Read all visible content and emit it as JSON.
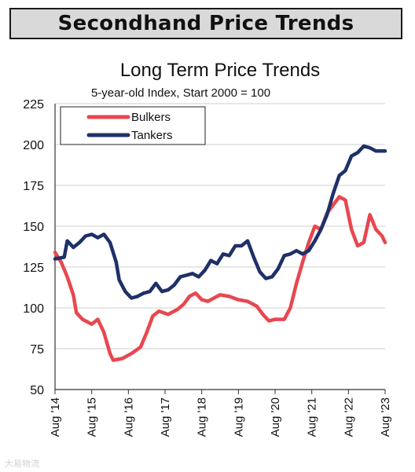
{
  "header": {
    "title": "Secondhand Price Trends"
  },
  "watermark": "大易物流",
  "chart_data": {
    "type": "line",
    "title": "Long Term Price Trends",
    "subtitle": "5-year-old Index, Start 2000 = 100",
    "xlabel": "",
    "ylabel": "",
    "ylim": [
      50,
      225
    ],
    "yticks": [
      50,
      75,
      100,
      125,
      150,
      175,
      200,
      225
    ],
    "xlim": [
      "2014-08",
      "2023-08"
    ],
    "xticks": [
      "Aug '14",
      "Aug '15",
      "Aug '16",
      "Aug '17",
      "Aug '18",
      "Aug '19",
      "Aug '20",
      "Aug '21",
      "Aug '22",
      "Aug '23"
    ],
    "grid": {
      "horizontal": true,
      "vertical": false
    },
    "legend": {
      "placement": "top-left"
    },
    "series": [
      {
        "name": "Bulkers",
        "color": "#e8474f",
        "points": [
          [
            "2014-08",
            134
          ],
          [
            "2014-10",
            128
          ],
          [
            "2014-12",
            119
          ],
          [
            "2015-02",
            108
          ],
          [
            "2015-03",
            97
          ],
          [
            "2015-05",
            93
          ],
          [
            "2015-08",
            90
          ],
          [
            "2015-10",
            93
          ],
          [
            "2015-12",
            85
          ],
          [
            "2016-02",
            72
          ],
          [
            "2016-03",
            68
          ],
          [
            "2016-06",
            69
          ],
          [
            "2016-09",
            72
          ],
          [
            "2016-12",
            76
          ],
          [
            "2017-02",
            85
          ],
          [
            "2017-04",
            95
          ],
          [
            "2017-06",
            98
          ],
          [
            "2017-09",
            96
          ],
          [
            "2017-12",
            99
          ],
          [
            "2018-02",
            102
          ],
          [
            "2018-04",
            107
          ],
          [
            "2018-06",
            109
          ],
          [
            "2018-08",
            105
          ],
          [
            "2018-10",
            104
          ],
          [
            "2018-12",
            106
          ],
          [
            "2019-02",
            108
          ],
          [
            "2019-05",
            107
          ],
          [
            "2019-08",
            105
          ],
          [
            "2019-11",
            104
          ],
          [
            "2020-02",
            101
          ],
          [
            "2020-04",
            96
          ],
          [
            "2020-06",
            92
          ],
          [
            "2020-08",
            93
          ],
          [
            "2020-11",
            93
          ],
          [
            "2021-01",
            100
          ],
          [
            "2021-03",
            115
          ],
          [
            "2021-05",
            128
          ],
          [
            "2021-07",
            140
          ],
          [
            "2021-09",
            150
          ],
          [
            "2021-11",
            148
          ],
          [
            "2022-01",
            158
          ],
          [
            "2022-03",
            163
          ],
          [
            "2022-05",
            168
          ],
          [
            "2022-07",
            166
          ],
          [
            "2022-09",
            148
          ],
          [
            "2022-11",
            138
          ],
          [
            "2023-01",
            140
          ],
          [
            "2023-03",
            157
          ],
          [
            "2023-05",
            148
          ],
          [
            "2023-07",
            144
          ],
          [
            "2023-08",
            140
          ]
        ]
      },
      {
        "name": "Tankers",
        "color": "#1f3068",
        "points": [
          [
            "2014-08",
            130
          ],
          [
            "2014-11",
            131
          ],
          [
            "2014-12",
            141
          ],
          [
            "2015-02",
            137
          ],
          [
            "2015-04",
            140
          ],
          [
            "2015-06",
            144
          ],
          [
            "2015-08",
            145
          ],
          [
            "2015-10",
            143
          ],
          [
            "2015-12",
            145
          ],
          [
            "2016-02",
            140
          ],
          [
            "2016-04",
            128
          ],
          [
            "2016-05",
            117
          ],
          [
            "2016-07",
            110
          ],
          [
            "2016-09",
            106
          ],
          [
            "2016-11",
            107
          ],
          [
            "2017-01",
            109
          ],
          [
            "2017-03",
            110
          ],
          [
            "2017-05",
            115
          ],
          [
            "2017-07",
            110
          ],
          [
            "2017-09",
            111
          ],
          [
            "2017-11",
            114
          ],
          [
            "2018-01",
            119
          ],
          [
            "2018-03",
            120
          ],
          [
            "2018-05",
            121
          ],
          [
            "2018-07",
            119
          ],
          [
            "2018-09",
            123
          ],
          [
            "2018-11",
            129
          ],
          [
            "2019-01",
            127
          ],
          [
            "2019-03",
            133
          ],
          [
            "2019-05",
            132
          ],
          [
            "2019-07",
            138
          ],
          [
            "2019-09",
            138
          ],
          [
            "2019-11",
            141
          ],
          [
            "2020-01",
            131
          ],
          [
            "2020-03",
            122
          ],
          [
            "2020-05",
            118
          ],
          [
            "2020-07",
            119
          ],
          [
            "2020-09",
            124
          ],
          [
            "2020-11",
            132
          ],
          [
            "2021-01",
            133
          ],
          [
            "2021-03",
            135
          ],
          [
            "2021-05",
            133
          ],
          [
            "2021-07",
            135
          ],
          [
            "2021-09",
            141
          ],
          [
            "2021-11",
            148
          ],
          [
            "2022-01",
            157
          ],
          [
            "2022-03",
            170
          ],
          [
            "2022-05",
            181
          ],
          [
            "2022-07",
            184
          ],
          [
            "2022-09",
            193
          ],
          [
            "2022-11",
            195
          ],
          [
            "2023-01",
            199
          ],
          [
            "2023-03",
            198
          ],
          [
            "2023-05",
            196
          ],
          [
            "2023-08",
            196
          ]
        ]
      }
    ]
  }
}
